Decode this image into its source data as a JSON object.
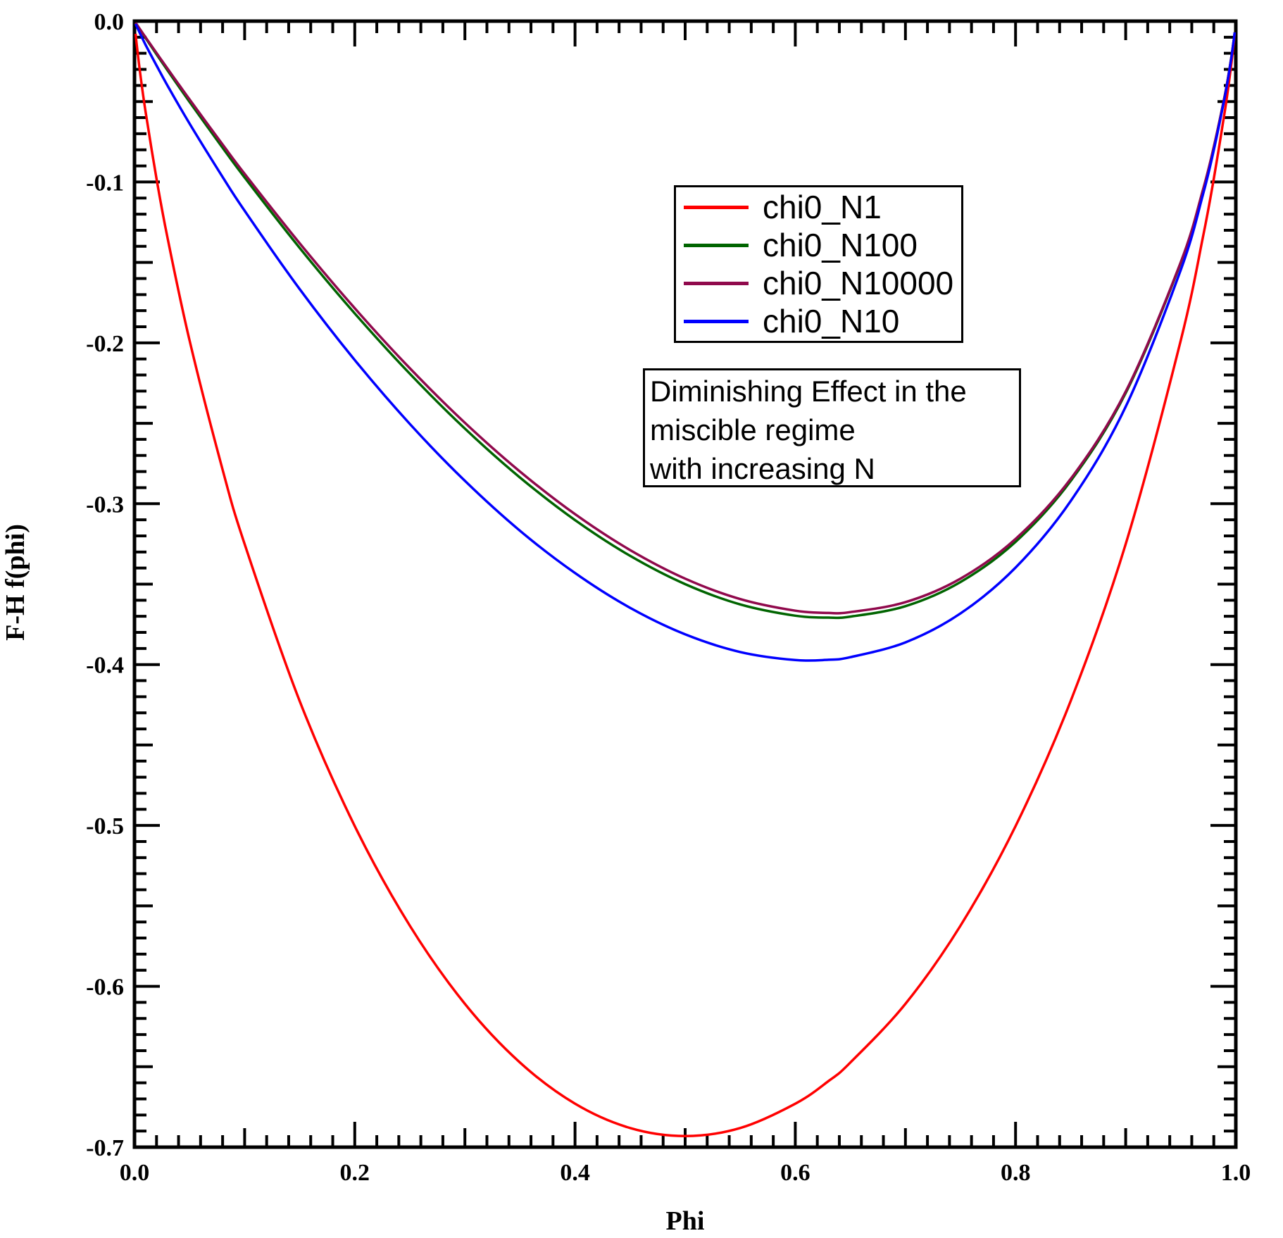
{
  "page": {
    "background": "#ffffff",
    "axis_color": "#000000",
    "text_color": "#000000"
  },
  "chart_data": {
    "type": "line",
    "title": "",
    "xlabel": "Phi",
    "ylabel": "F-H f(phi)",
    "xlim": [
      0.0,
      1.0
    ],
    "ylim": [
      -0.7,
      0.0
    ],
    "grid": false,
    "legend_position": "upper-middle boxed",
    "x_tick_values": [
      0.0,
      0.2,
      0.4,
      0.6,
      0.8,
      1.0
    ],
    "x_tick_labels": [
      "0.0",
      "0.2",
      "0.4",
      "0.6",
      "0.8",
      "1.0"
    ],
    "x_minor_step": 0.02,
    "x_medium_step": 0.1,
    "y_tick_values": [
      0.0,
      -0.1,
      -0.2,
      -0.3,
      -0.4,
      -0.5,
      -0.6,
      -0.7
    ],
    "y_tick_labels": [
      "0.0",
      "-0.1",
      "-0.2",
      "-0.3",
      "-0.4",
      "-0.5",
      "-0.6",
      "-0.7"
    ],
    "y_minor_step": 0.01,
    "y_medium_step": 0.05,
    "phi": [
      0.001,
      0.002,
      0.005,
      0.01,
      0.02,
      0.03,
      0.05,
      0.08,
      0.1,
      0.15,
      0.2,
      0.25,
      0.3,
      0.35,
      0.4,
      0.45,
      0.5,
      0.55,
      0.6,
      0.63,
      0.65,
      0.7,
      0.75,
      0.8,
      0.85,
      0.9,
      0.95,
      0.97,
      0.98,
      0.99,
      0.995,
      0.998,
      0.999
    ],
    "series": [
      {
        "name": "chi0_N1",
        "color": "#ff0000",
        "values": [
          -0.0079,
          -0.0144,
          -0.0315,
          -0.056,
          -0.098,
          -0.1347,
          -0.1985,
          -0.2788,
          -0.3251,
          -0.4227,
          -0.5004,
          -0.5623,
          -0.6109,
          -0.6474,
          -0.673,
          -0.6881,
          -0.6931,
          -0.6881,
          -0.673,
          -0.659,
          -0.6474,
          -0.6109,
          -0.5623,
          -0.5004,
          -0.4227,
          -0.3251,
          -0.1985,
          -0.1347,
          -0.098,
          -0.056,
          -0.0315,
          -0.0144,
          -0.0079
        ]
      },
      {
        "name": "chi0_N100",
        "color": "#006400",
        "values": [
          -0.001,
          -0.0021,
          -0.0053,
          -0.0104,
          -0.0206,
          -0.0306,
          -0.0502,
          -0.0787,
          -0.0972,
          -0.141,
          -0.1817,
          -0.2192,
          -0.2533,
          -0.2837,
          -0.3102,
          -0.3324,
          -0.35,
          -0.3626,
          -0.3696,
          -0.3708,
          -0.3702,
          -0.3637,
          -0.3487,
          -0.3237,
          -0.2859,
          -0.2312,
          -0.1503,
          -0.1055,
          -0.0784,
          -0.0462,
          -0.0265,
          -0.0125,
          -0.0069
        ]
      },
      {
        "name": "chi0_N10000",
        "color": "#90094c",
        "values": [
          -0.001,
          -0.002,
          -0.005,
          -0.01,
          -0.0198,
          -0.0295,
          -0.0487,
          -0.0767,
          -0.0949,
          -0.1381,
          -0.1785,
          -0.2158,
          -0.2497,
          -0.28,
          -0.3065,
          -0.3288,
          -0.3466,
          -0.3593,
          -0.3665,
          -0.3679,
          -0.3674,
          -0.3612,
          -0.3466,
          -0.3219,
          -0.2846,
          -0.2303,
          -0.1498,
          -0.1052,
          -0.0782,
          -0.0461,
          -0.0265,
          -0.0124,
          -0.0069
        ]
      },
      {
        "name": "chi0_N10",
        "color": "#0000ff",
        "values": [
          -0.0017,
          -0.0032,
          -0.0076,
          -0.0146,
          -0.0276,
          -0.0401,
          -0.0637,
          -0.0969,
          -0.1179,
          -0.1666,
          -0.2107,
          -0.2504,
          -0.2858,
          -0.3168,
          -0.3431,
          -0.3647,
          -0.3812,
          -0.3922,
          -0.3972,
          -0.397,
          -0.3954,
          -0.3862,
          -0.3682,
          -0.3397,
          -0.2984,
          -0.2397,
          -0.1547,
          -0.1082,
          -0.0802,
          -0.047,
          -0.027,
          -0.0126,
          -0.007
        ]
      }
    ],
    "annotation_lines": [
      "Diminishing Effect in the",
      "miscible regime",
      "with increasing N"
    ]
  }
}
